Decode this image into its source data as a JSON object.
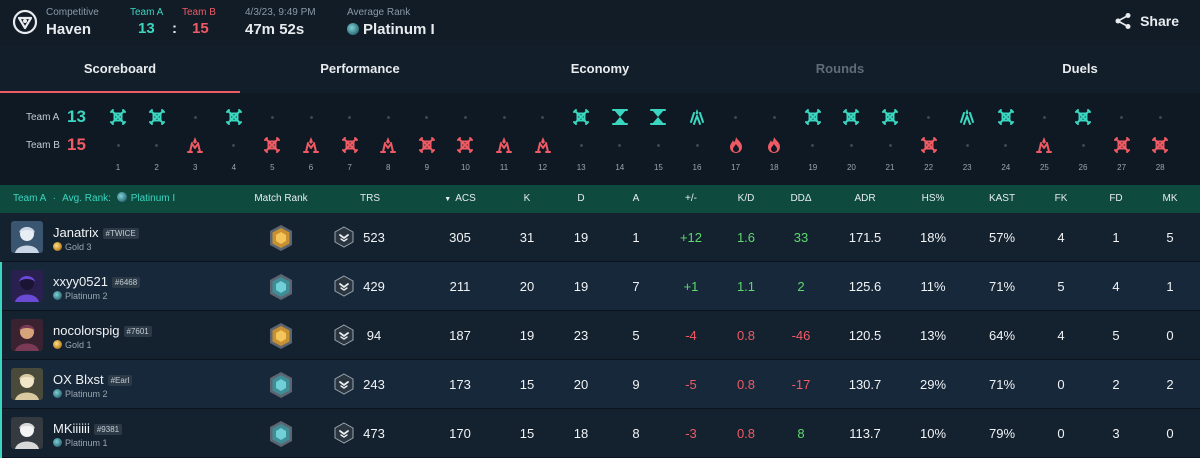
{
  "header": {
    "mode_label": "Competitive",
    "map": "Haven",
    "team_a_label": "Team A",
    "team_b_label": "Team B",
    "score_a": "13",
    "score_sep": ":",
    "score_b": "15",
    "datetime": "4/3/23, 9:49 PM",
    "duration": "47m 52s",
    "avg_rank_label": "Average Rank",
    "avg_rank": "Platinum I",
    "share_label": "Share"
  },
  "tabs": [
    {
      "label": "Scoreboard",
      "active": true,
      "disabled": false
    },
    {
      "label": "Performance",
      "active": false,
      "disabled": false
    },
    {
      "label": "Economy",
      "active": false,
      "disabled": false
    },
    {
      "label": "Rounds",
      "active": false,
      "disabled": true
    },
    {
      "label": "Duels",
      "active": false,
      "disabled": false
    }
  ],
  "timeline": {
    "team_a_label": "Team A",
    "team_a_score": "13",
    "team_b_label": "Team B",
    "team_b_score": "15",
    "colors": {
      "team_a": "#3ad6c0",
      "team_b": "#ef5a64"
    },
    "rounds": [
      {
        "num": "1",
        "winner": "a",
        "icon": "elimination-icon"
      },
      {
        "num": "2",
        "winner": "a",
        "icon": "elimination-icon"
      },
      {
        "num": "3",
        "winner": "b",
        "icon": "spike-explode-icon"
      },
      {
        "num": "4",
        "winner": "a",
        "icon": "elimination-icon"
      },
      {
        "num": "5",
        "winner": "b",
        "icon": "elimination-icon"
      },
      {
        "num": "6",
        "winner": "b",
        "icon": "spike-explode-icon"
      },
      {
        "num": "7",
        "winner": "b",
        "icon": "elimination-icon"
      },
      {
        "num": "8",
        "winner": "b",
        "icon": "spike-explode-icon"
      },
      {
        "num": "9",
        "winner": "b",
        "icon": "elimination-icon"
      },
      {
        "num": "10",
        "winner": "b",
        "icon": "elimination-icon"
      },
      {
        "num": "11",
        "winner": "b",
        "icon": "spike-explode-icon"
      },
      {
        "num": "12",
        "winner": "b",
        "icon": "spike-explode-icon"
      },
      {
        "num": "13",
        "winner": "a",
        "icon": "elimination-icon"
      },
      {
        "num": "14",
        "winner": "a",
        "icon": "time-expired-icon"
      },
      {
        "num": "15",
        "winner": "a",
        "icon": "time-expired-icon"
      },
      {
        "num": "16",
        "winner": "a",
        "icon": "spike-defuse-icon"
      },
      {
        "num": "17",
        "winner": "b",
        "icon": "spike-detonate-icon"
      },
      {
        "num": "18",
        "winner": "b",
        "icon": "spike-detonate-icon"
      },
      {
        "num": "19",
        "winner": "a",
        "icon": "elimination-icon"
      },
      {
        "num": "20",
        "winner": "a",
        "icon": "elimination-icon"
      },
      {
        "num": "21",
        "winner": "a",
        "icon": "elimination-icon"
      },
      {
        "num": "22",
        "winner": "b",
        "icon": "elimination-icon"
      },
      {
        "num": "23",
        "winner": "a",
        "icon": "spike-defuse-icon"
      },
      {
        "num": "24",
        "winner": "a",
        "icon": "elimination-icon"
      },
      {
        "num": "25",
        "winner": "b",
        "icon": "spike-explode-icon"
      },
      {
        "num": "26",
        "winner": "a",
        "icon": "elimination-icon"
      },
      {
        "num": "27",
        "winner": "b",
        "icon": "elimination-icon"
      },
      {
        "num": "28",
        "winner": "b",
        "icon": "elimination-icon"
      }
    ]
  },
  "table": {
    "team_header": "Team A",
    "avg_rank_label": "Avg. Rank:",
    "avg_rank": "Platinum I",
    "columns": {
      "match_rank": "Match Rank",
      "trs": "TRS",
      "acs": "ACS",
      "k": "K",
      "d": "D",
      "a": "A",
      "pm": "+/-",
      "kd": "K/D",
      "dd": "DDΔ",
      "adr": "ADR",
      "hs": "HS%",
      "kast": "KAST",
      "fk": "FK",
      "fd": "FD",
      "mk": "MK"
    },
    "rows": [
      {
        "name": "Janatrix",
        "tag": "#TWICE",
        "rank": "Gold 3",
        "rank_tier": "gold",
        "match_rank_tier": "gold",
        "avatar": "agent-avatar-1",
        "trs": "523",
        "acs": "305",
        "k": "31",
        "d": "19",
        "a": "1",
        "pm": "+12",
        "kd": "1.6",
        "dd": "33",
        "adr": "171.5",
        "hs": "18%",
        "kast": "57%",
        "fk": "4",
        "fd": "1",
        "mk": "5",
        "pm_sign": "pos",
        "kd_sign": "pos",
        "dd_sign": "pos"
      },
      {
        "name": "xxyy0521",
        "tag": "#6468",
        "rank": "Platinum 2",
        "rank_tier": "plat",
        "match_rank_tier": "plat",
        "avatar": "agent-avatar-2",
        "trs": "429",
        "acs": "211",
        "k": "20",
        "d": "19",
        "a": "7",
        "pm": "+1",
        "kd": "1.1",
        "dd": "2",
        "adr": "125.6",
        "hs": "11%",
        "kast": "71%",
        "fk": "5",
        "fd": "4",
        "mk": "1",
        "pm_sign": "pos",
        "kd_sign": "pos",
        "dd_sign": "pos"
      },
      {
        "name": "nocolorspig",
        "tag": "#7601",
        "rank": "Gold 1",
        "rank_tier": "gold",
        "match_rank_tier": "gold",
        "avatar": "agent-avatar-3",
        "trs": "94",
        "acs": "187",
        "k": "19",
        "d": "23",
        "a": "5",
        "pm": "-4",
        "kd": "0.8",
        "dd": "-46",
        "adr": "120.5",
        "hs": "13%",
        "kast": "64%",
        "fk": "4",
        "fd": "5",
        "mk": "0",
        "pm_sign": "neg",
        "kd_sign": "neg",
        "dd_sign": "neg"
      },
      {
        "name": "OX Blxst",
        "tag": "#Earl",
        "rank": "Platinum 2",
        "rank_tier": "plat",
        "match_rank_tier": "plat",
        "avatar": "agent-avatar-4",
        "trs": "243",
        "acs": "173",
        "k": "15",
        "d": "20",
        "a": "9",
        "pm": "-5",
        "kd": "0.8",
        "dd": "-17",
        "adr": "130.7",
        "hs": "29%",
        "kast": "71%",
        "fk": "0",
        "fd": "2",
        "mk": "2",
        "pm_sign": "neg",
        "kd_sign": "neg",
        "dd_sign": "neg"
      },
      {
        "name": "MKiiiiii",
        "tag": "#9381",
        "rank": "Platinum 1",
        "rank_tier": "plat",
        "match_rank_tier": "plat",
        "avatar": "agent-avatar-5",
        "trs": "473",
        "acs": "170",
        "k": "15",
        "d": "18",
        "a": "8",
        "pm": "-3",
        "kd": "0.8",
        "dd": "8",
        "adr": "113.7",
        "hs": "10%",
        "kast": "79%",
        "fk": "0",
        "fd": "3",
        "mk": "0",
        "pm_sign": "neg",
        "kd_sign": "neg",
        "dd_sign": "pos"
      }
    ]
  }
}
